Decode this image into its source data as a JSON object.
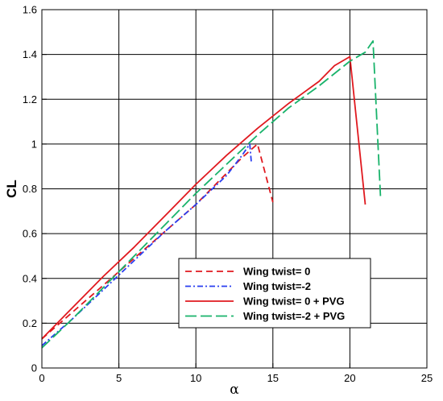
{
  "chart_data": {
    "type": "line",
    "xlabel": "α",
    "ylabel": "CL",
    "xlim": [
      0,
      25
    ],
    "ylim": [
      0,
      1.6
    ],
    "xticks": [
      0,
      5,
      10,
      15,
      20,
      25
    ],
    "yticks": [
      0,
      0.2,
      0.4,
      0.6,
      0.8,
      1,
      1.2,
      1.4,
      1.6
    ],
    "xtick_labels": [
      "0",
      "5",
      "10",
      "15",
      "20",
      "25"
    ],
    "ytick_labels": [
      "0",
      "0.2",
      "0.4",
      "0.6",
      "0.8",
      "1",
      "1.2",
      "1.4",
      "1.6"
    ],
    "grid": true,
    "legend_position": "bottom-right",
    "series": [
      {
        "name": "Wing twist= 0",
        "color": "#e0191f",
        "dash": "dashed",
        "x": [
          0,
          2,
          4,
          6,
          8,
          10,
          12,
          13,
          14,
          15
        ],
        "y": [
          0.13,
          0.25,
          0.37,
          0.49,
          0.61,
          0.73,
          0.87,
          0.94,
          1.0,
          0.74
        ]
      },
      {
        "name": "Wing twist=-2",
        "color": "#2a3ef0",
        "dash": "dashdot",
        "x": [
          0,
          2,
          4,
          6,
          8,
          10,
          12,
          13,
          13.5,
          13.6
        ],
        "y": [
          0.1,
          0.22,
          0.35,
          0.48,
          0.61,
          0.73,
          0.86,
          0.95,
          1.0,
          0.92
        ]
      },
      {
        "name": "Wing twist= 0 + PVG",
        "color": "#e0191f",
        "dash": "solid",
        "x": [
          0,
          2,
          4,
          6,
          8,
          10,
          12,
          14,
          16,
          18,
          19,
          20,
          21
        ],
        "y": [
          0.13,
          0.27,
          0.41,
          0.54,
          0.68,
          0.82,
          0.95,
          1.07,
          1.18,
          1.28,
          1.35,
          1.39,
          0.73
        ]
      },
      {
        "name": "Wing twist=-2 + PVG",
        "color": "#19b36b",
        "dash": "longdash",
        "x": [
          0,
          2,
          4,
          6,
          8,
          10,
          12,
          14,
          16,
          18,
          20,
          21,
          21.5,
          22
        ],
        "y": [
          0.09,
          0.22,
          0.36,
          0.5,
          0.64,
          0.78,
          0.91,
          1.04,
          1.16,
          1.26,
          1.37,
          1.41,
          1.46,
          0.75
        ]
      }
    ]
  }
}
